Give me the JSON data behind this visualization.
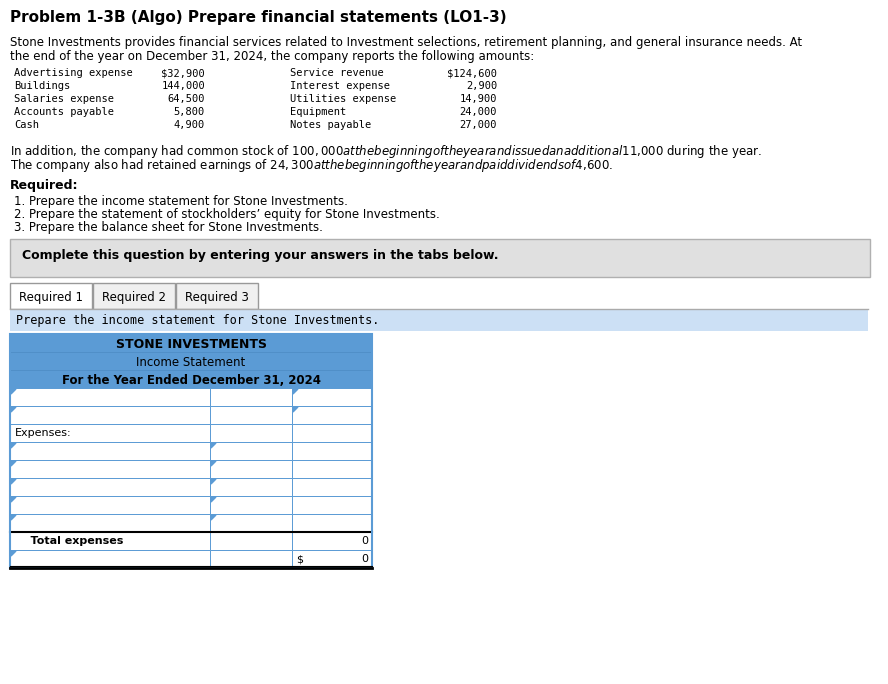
{
  "title": "Problem 1-3B (Algo) Prepare financial statements (LO1-3)",
  "desc1": "Stone Investments provides financial services related to Investment selections, retirement planning, and general insurance needs. At",
  "desc2": "the end of the year on December 31, 2024, the company reports the following amounts:",
  "table_col1": [
    "Advertising expense",
    "Buildings",
    "Salaries expense",
    "Accounts payable",
    "Cash"
  ],
  "table_col2": [
    "$32,900",
    "144,000",
    "64,500",
    "5,800",
    "4,900"
  ],
  "table_col3": [
    "Service revenue",
    "Interest expense",
    "Utilities expense",
    "Equipment",
    "Notes payable"
  ],
  "table_col4": [
    "$124,600",
    "2,900",
    "14,900",
    "24,000",
    "27,000"
  ],
  "add1": "In addition, the company had common stock of $100,000 at the beginning of the year and issued an additional $11,000 during the year.",
  "add2": "The company also had retained earnings of $24,300 at the beginning of the year and paid dividends of $4,600.",
  "req_label": "Required:",
  "req1": "1. Prepare the income statement for Stone Investments.",
  "req2": "2. Prepare the statement of stockholders’ equity for Stone Investments.",
  "req3": "3. Prepare the balance sheet for Stone Investments.",
  "complete_text": "Complete this question by entering your answers in the tabs below.",
  "tab1": "Required 1",
  "tab2": "Required 2",
  "tab3": "Required 3",
  "prep_text": "Prepare the income statement for Stone Investments.",
  "stmt1": "STONE INVESTMENTS",
  "stmt2": "Income Statement",
  "stmt3": "For the Year Ended December 31, 2024",
  "expenses": "Expenses:",
  "total_exp": "Total expenses",
  "val0a": "0",
  "val0b": "0",
  "dollar": "$",
  "blue_hdr": "#5b9bd5",
  "blue_border": "#5b9bd5",
  "gray_bg": "#e0e0e0",
  "tab_active": "#ffffff",
  "tab_inactive": "#f0f0f0",
  "prep_bg": "#cce0f5",
  "dark_text": "#1f1f1f",
  "brown_text": "#8B4513",
  "fig_w": 8.88,
  "fig_h": 6.84
}
